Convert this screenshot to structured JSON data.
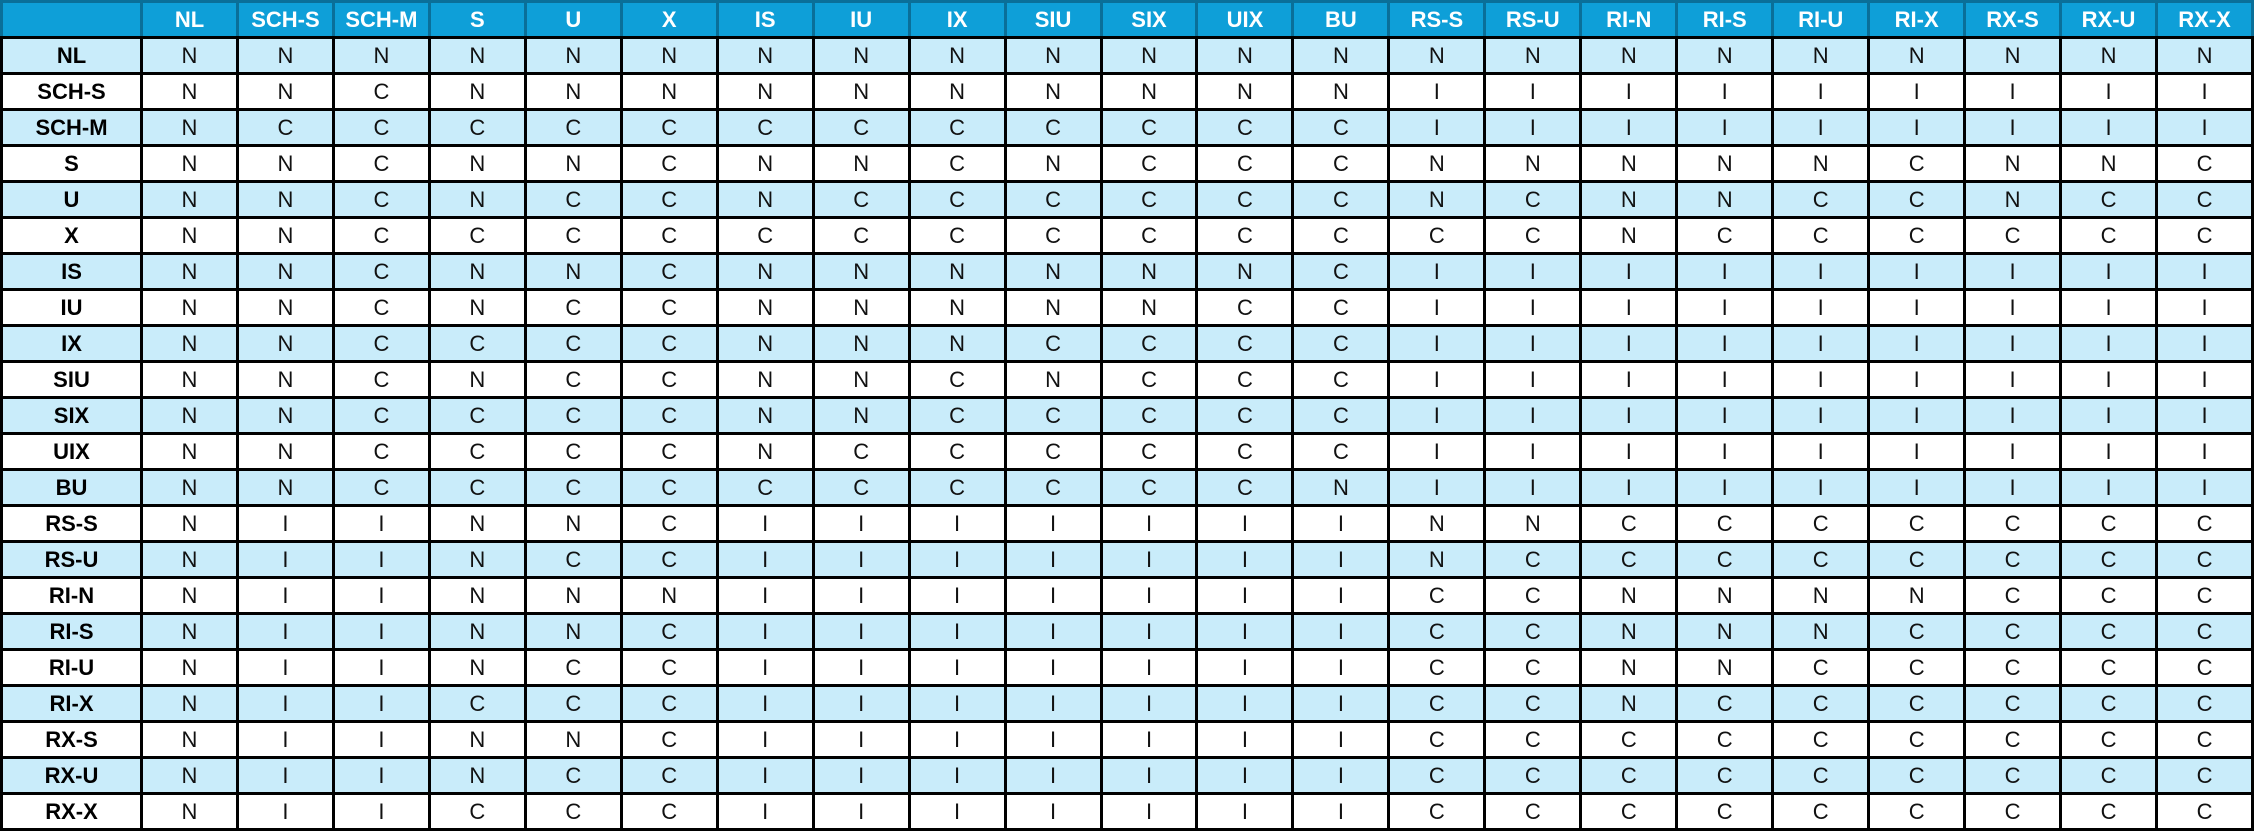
{
  "colors": {
    "header_bg": "#0e9fd8",
    "header_text": "#ffffff",
    "band_row": "#c9ecfa",
    "plain_row": "#ffffff",
    "border": "#000000"
  },
  "columns": [
    "NL",
    "SCH-S",
    "SCH-M",
    "S",
    "U",
    "X",
    "IS",
    "IU",
    "IX",
    "SIU",
    "SIX",
    "UIX",
    "BU",
    "RS-S",
    "RS-U",
    "RI-N",
    "RI-S",
    "RI-U",
    "RI-X",
    "RX-S",
    "RX-U",
    "RX-X"
  ],
  "rows": [
    {
      "label": "NL",
      "cells": [
        "N",
        "N",
        "N",
        "N",
        "N",
        "N",
        "N",
        "N",
        "N",
        "N",
        "N",
        "N",
        "N",
        "N",
        "N",
        "N",
        "N",
        "N",
        "N",
        "N",
        "N",
        "N"
      ]
    },
    {
      "label": "SCH-S",
      "cells": [
        "N",
        "N",
        "C",
        "N",
        "N",
        "N",
        "N",
        "N",
        "N",
        "N",
        "N",
        "N",
        "N",
        "I",
        "I",
        "I",
        "I",
        "I",
        "I",
        "I",
        "I",
        "I"
      ]
    },
    {
      "label": "SCH-M",
      "cells": [
        "N",
        "C",
        "C",
        "C",
        "C",
        "C",
        "C",
        "C",
        "C",
        "C",
        "C",
        "C",
        "C",
        "I",
        "I",
        "I",
        "I",
        "I",
        "I",
        "I",
        "I",
        "I"
      ]
    },
    {
      "label": "S",
      "cells": [
        "N",
        "N",
        "C",
        "N",
        "N",
        "C",
        "N",
        "N",
        "C",
        "N",
        "C",
        "C",
        "C",
        "N",
        "N",
        "N",
        "N",
        "N",
        "C",
        "N",
        "N",
        "C"
      ]
    },
    {
      "label": "U",
      "cells": [
        "N",
        "N",
        "C",
        "N",
        "C",
        "C",
        "N",
        "C",
        "C",
        "C",
        "C",
        "C",
        "C",
        "N",
        "C",
        "N",
        "N",
        "C",
        "C",
        "N",
        "C",
        "C"
      ]
    },
    {
      "label": "X",
      "cells": [
        "N",
        "N",
        "C",
        "C",
        "C",
        "C",
        "C",
        "C",
        "C",
        "C",
        "C",
        "C",
        "C",
        "C",
        "C",
        "N",
        "C",
        "C",
        "C",
        "C",
        "C",
        "C"
      ]
    },
    {
      "label": "IS",
      "cells": [
        "N",
        "N",
        "C",
        "N",
        "N",
        "C",
        "N",
        "N",
        "N",
        "N",
        "N",
        "N",
        "C",
        "I",
        "I",
        "I",
        "I",
        "I",
        "I",
        "I",
        "I",
        "I"
      ]
    },
    {
      "label": "IU",
      "cells": [
        "N",
        "N",
        "C",
        "N",
        "C",
        "C",
        "N",
        "N",
        "N",
        "N",
        "N",
        "C",
        "C",
        "I",
        "I",
        "I",
        "I",
        "I",
        "I",
        "I",
        "I",
        "I"
      ]
    },
    {
      "label": "IX",
      "cells": [
        "N",
        "N",
        "C",
        "C",
        "C",
        "C",
        "N",
        "N",
        "N",
        "C",
        "C",
        "C",
        "C",
        "I",
        "I",
        "I",
        "I",
        "I",
        "I",
        "I",
        "I",
        "I"
      ]
    },
    {
      "label": "SIU",
      "cells": [
        "N",
        "N",
        "C",
        "N",
        "C",
        "C",
        "N",
        "N",
        "C",
        "N",
        "C",
        "C",
        "C",
        "I",
        "I",
        "I",
        "I",
        "I",
        "I",
        "I",
        "I",
        "I"
      ]
    },
    {
      "label": "SIX",
      "cells": [
        "N",
        "N",
        "C",
        "C",
        "C",
        "C",
        "N",
        "N",
        "C",
        "C",
        "C",
        "C",
        "C",
        "I",
        "I",
        "I",
        "I",
        "I",
        "I",
        "I",
        "I",
        "I"
      ]
    },
    {
      "label": "UIX",
      "cells": [
        "N",
        "N",
        "C",
        "C",
        "C",
        "C",
        "N",
        "C",
        "C",
        "C",
        "C",
        "C",
        "C",
        "I",
        "I",
        "I",
        "I",
        "I",
        "I",
        "I",
        "I",
        "I"
      ]
    },
    {
      "label": "BU",
      "cells": [
        "N",
        "N",
        "C",
        "C",
        "C",
        "C",
        "C",
        "C",
        "C",
        "C",
        "C",
        "C",
        "N",
        "I",
        "I",
        "I",
        "I",
        "I",
        "I",
        "I",
        "I",
        "I"
      ]
    },
    {
      "label": "RS-S",
      "cells": [
        "N",
        "I",
        "I",
        "N",
        "N",
        "C",
        "I",
        "I",
        "I",
        "I",
        "I",
        "I",
        "I",
        "N",
        "N",
        "C",
        "C",
        "C",
        "C",
        "C",
        "C",
        "C"
      ]
    },
    {
      "label": "RS-U",
      "cells": [
        "N",
        "I",
        "I",
        "N",
        "C",
        "C",
        "I",
        "I",
        "I",
        "I",
        "I",
        "I",
        "I",
        "N",
        "C",
        "C",
        "C",
        "C",
        "C",
        "C",
        "C",
        "C"
      ]
    },
    {
      "label": "RI-N",
      "cells": [
        "N",
        "I",
        "I",
        "N",
        "N",
        "N",
        "I",
        "I",
        "I",
        "I",
        "I",
        "I",
        "I",
        "C",
        "C",
        "N",
        "N",
        "N",
        "N",
        "C",
        "C",
        "C"
      ]
    },
    {
      "label": "RI-S",
      "cells": [
        "N",
        "I",
        "I",
        "N",
        "N",
        "C",
        "I",
        "I",
        "I",
        "I",
        "I",
        "I",
        "I",
        "C",
        "C",
        "N",
        "N",
        "N",
        "C",
        "C",
        "C",
        "C"
      ]
    },
    {
      "label": "RI-U",
      "cells": [
        "N",
        "I",
        "I",
        "N",
        "C",
        "C",
        "I",
        "I",
        "I",
        "I",
        "I",
        "I",
        "I",
        "C",
        "C",
        "N",
        "N",
        "C",
        "C",
        "C",
        "C",
        "C"
      ]
    },
    {
      "label": "RI-X",
      "cells": [
        "N",
        "I",
        "I",
        "C",
        "C",
        "C",
        "I",
        "I",
        "I",
        "I",
        "I",
        "I",
        "I",
        "C",
        "C",
        "N",
        "C",
        "C",
        "C",
        "C",
        "C",
        "C"
      ]
    },
    {
      "label": "RX-S",
      "cells": [
        "N",
        "I",
        "I",
        "N",
        "N",
        "C",
        "I",
        "I",
        "I",
        "I",
        "I",
        "I",
        "I",
        "C",
        "C",
        "C",
        "C",
        "C",
        "C",
        "C",
        "C",
        "C"
      ]
    },
    {
      "label": "RX-U",
      "cells": [
        "N",
        "I",
        "I",
        "N",
        "C",
        "C",
        "I",
        "I",
        "I",
        "I",
        "I",
        "I",
        "I",
        "C",
        "C",
        "C",
        "C",
        "C",
        "C",
        "C",
        "C",
        "C"
      ]
    },
    {
      "label": "RX-X",
      "cells": [
        "N",
        "I",
        "I",
        "C",
        "C",
        "C",
        "I",
        "I",
        "I",
        "I",
        "I",
        "I",
        "I",
        "C",
        "C",
        "C",
        "C",
        "C",
        "C",
        "C",
        "C",
        "C"
      ]
    }
  ]
}
